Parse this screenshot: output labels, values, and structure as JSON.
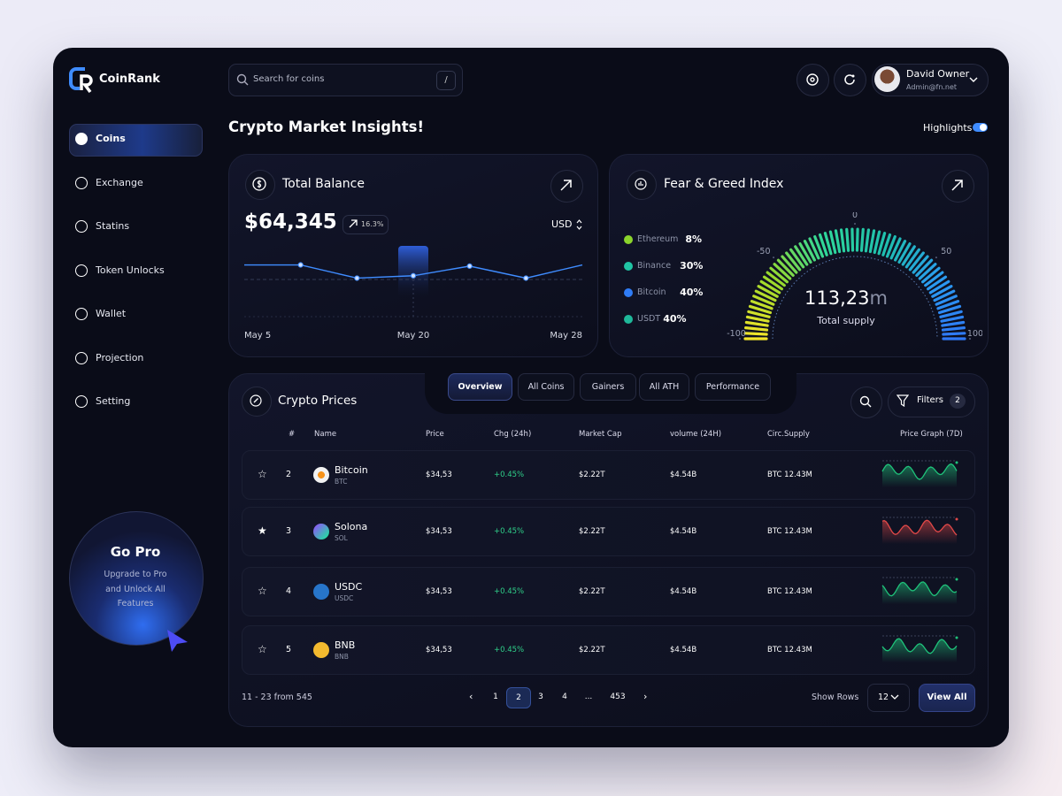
{
  "brand": "CoinRank",
  "search": {
    "placeholder": "Search for coins",
    "shortcut": "/"
  },
  "user": {
    "name": "David Owner",
    "email": "Admin@fn.net"
  },
  "nav": [
    "Coins",
    "Exchange",
    "Statins",
    "Token Unlocks",
    "Wallet",
    "Projection",
    "Setting"
  ],
  "nav_active": 0,
  "promo": {
    "title": "Go Pro",
    "text": "Upgrade to Pro and Unlock All Features"
  },
  "page_title": "Crypto Market Insights!",
  "highlights": {
    "label": "Highlights",
    "on": true
  },
  "balance": {
    "title": "Total Balance",
    "amount": "$64,345",
    "change": "16.3%",
    "currency": "USD",
    "dates": [
      "May 5",
      "May 20",
      "May 28"
    ],
    "trend": {
      "values": [
        43,
        43,
        32,
        34,
        42,
        32,
        43
      ],
      "ylim": [
        0,
        50
      ],
      "color": "#3f8cff"
    }
  },
  "fear_greed": {
    "title": "Fear & Greed Index",
    "legend": [
      {
        "name": "Ethereum",
        "share": "8%",
        "color": "#8bd42c"
      },
      {
        "name": "Binance",
        "share": "30%",
        "color": "#20c4a4"
      },
      {
        "name": "Bitcoin",
        "share": "40%",
        "color": "#2f7cf6"
      },
      {
        "name": "USDT",
        "share": "40%",
        "color": "#1fb89a"
      }
    ],
    "gauge": {
      "lim": [
        -100,
        100
      ],
      "ticks": [
        -100,
        -50,
        0,
        50,
        100
      ]
    },
    "supply": "113,23",
    "supply_unit": "m",
    "supply_label": "Total supply"
  },
  "prices": {
    "title": "Crypto Prices",
    "tabs": [
      "Overview",
      "All Coins",
      "Gainers",
      "All ATH",
      "Performance"
    ],
    "active_tab": 0,
    "filters": "Filters",
    "filter_count": "2",
    "columns": [
      "#",
      "Name",
      "Price",
      "Chg (24h)",
      "Market Cap",
      "volume (24H)",
      "Circ.Supply",
      "Price Graph (7D)"
    ],
    "rows": [
      {
        "rank": "2",
        "name": "Bitcoin",
        "symbol": "BTC",
        "price": "$34,53",
        "change": "+0.45%",
        "market_cap": "$2.22T",
        "volume": "$4.54B",
        "supply": "BTC 12.43M",
        "starred": false,
        "graph_color": "#1fc27a"
      },
      {
        "rank": "3",
        "name": "Solona",
        "symbol": "SOL",
        "price": "$34,53",
        "change": "+0.45%",
        "market_cap": "$2.22T",
        "volume": "$4.54B",
        "supply": "BTC 12.43M",
        "starred": true,
        "graph_color": "#e04848"
      },
      {
        "rank": "4",
        "name": "USDC",
        "symbol": "USDC",
        "price": "$34,53",
        "change": "+0.45%",
        "market_cap": "$2.22T",
        "volume": "$4.54B",
        "supply": "BTC 12.43M",
        "starred": false,
        "graph_color": "#1fc27a"
      },
      {
        "rank": "5",
        "name": "BNB",
        "symbol": "BNB",
        "price": "$34,53",
        "change": "+0.45%",
        "market_cap": "$2.22T",
        "volume": "$4.54B",
        "supply": "BTC 12.43M",
        "starred": false,
        "graph_color": "#1fc27a"
      }
    ],
    "range_text": "11 - 23 from 545",
    "pages": [
      "1",
      "2",
      "3",
      "4",
      "...",
      "453"
    ],
    "active_page": 1,
    "show_rows": "Show Rows",
    "rows_value": "12",
    "view_all": "View All"
  }
}
